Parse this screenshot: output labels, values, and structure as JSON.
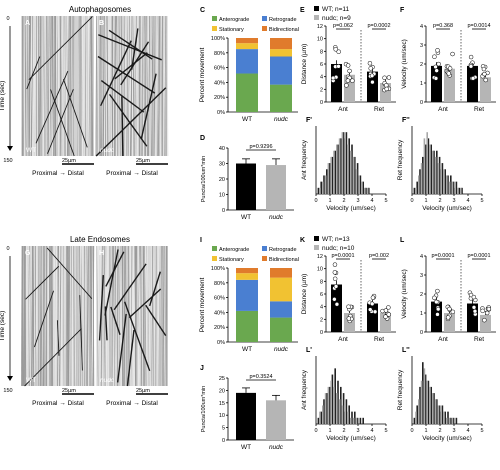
{
  "sections": [
    {
      "title": "Autophagosomes",
      "kymo": {
        "wt_letter": "A",
        "mut_letter": "B",
        "wt_label": "WT",
        "mut_label": "nudc",
        "y_axis_label": "Time (sec)",
        "y_start": "0",
        "y_end": "150",
        "scale_left": "25µm",
        "scale_right": "25µm",
        "axis_left": "Proximal → Distal",
        "axis_right": "Proximal → Distal"
      },
      "charts": {
        "movement": {
          "letter": "C",
          "type": "bar-stacked",
          "ylabel": "Percent movement",
          "yticks": [
            "0%",
            "20%",
            "40%",
            "60%",
            "80%",
            "100%"
          ],
          "categories": [
            "WT",
            "nudc"
          ],
          "legend": [
            "Anterograde",
            "Retrograde",
            "Stationary",
            "Bidirectional"
          ],
          "colors": [
            "#6aa84f",
            "#4a7fd1",
            "#f1c232",
            "#e07b2c"
          ],
          "series": [
            {
              "name": "Anterograde",
              "values": [
                52,
                37
              ]
            },
            {
              "name": "Retrograde",
              "values": [
                33,
                38
              ]
            },
            {
              "name": "Stationary",
              "values": [
                8,
                10
              ]
            },
            {
              "name": "Bidirectional",
              "values": [
                7,
                15
              ]
            }
          ]
        },
        "puncta": {
          "letter": "D",
          "type": "bar",
          "ylabel": "Puncta/100um*min",
          "categories": [
            "WT",
            "nudc"
          ],
          "values": [
            30,
            29
          ],
          "errors": [
            3,
            4
          ],
          "ylim": [
            0,
            40
          ],
          "yticks": [
            "0",
            "10",
            "20",
            "30",
            "40"
          ],
          "pvalue": "p=0.9296"
        },
        "distance": {
          "letter": "E",
          "type": "bar",
          "ylabel": "Distance (µm)",
          "legend": [
            "WT; n=11",
            "nudc; n=9"
          ],
          "groups": [
            "Ant",
            "Ret"
          ],
          "wt_values": [
            6.0,
            4.8
          ],
          "mut_values": [
            4.3,
            3.0
          ],
          "ylim": [
            0,
            12
          ],
          "yticks": [
            "0",
            "2",
            "4",
            "6",
            "8",
            "10",
            "12"
          ],
          "pvalues": [
            "p=0.062",
            "p=0.0002"
          ]
        },
        "velocity": {
          "letter": "F",
          "type": "bar",
          "ylabel": "Velocity (um/sec)",
          "groups": [
            "Ant",
            "Ret"
          ],
          "wt_values": [
            1.9,
            1.9
          ],
          "mut_values": [
            1.75,
            1.3
          ],
          "ylim": [
            0,
            4
          ],
          "yticks": [
            "0",
            "1",
            "2",
            "3",
            "4"
          ],
          "pvalues": [
            "p=0.368",
            "p=0.0014"
          ]
        },
        "ant_hist": {
          "letter": "F'",
          "type": "bar",
          "ylabel": "Ant frequency",
          "xlabel": "Velocity (um/sec)",
          "xticks": [
            "0",
            "1",
            "2",
            "3",
            "4",
            "5"
          ]
        },
        "ret_hist": {
          "letter": "F''",
          "type": "bar",
          "ylabel": "Ret frequency",
          "xlabel": "Velocity (um/sec)",
          "xticks": [
            "0",
            "1",
            "2",
            "3",
            "4",
            "5"
          ]
        }
      }
    },
    {
      "title": "Late Endosomes",
      "kymo": {
        "wt_letter": "G",
        "mut_letter": "H",
        "wt_label": "WT",
        "mut_label": "nudc",
        "y_axis_label": "Time (sec)",
        "y_start": "0",
        "y_end": "150",
        "scale_left": "25µm",
        "scale_right": "25µm",
        "axis_left": "Proximal → Distal",
        "axis_right": "Proximal → Distal"
      },
      "charts": {
        "movement": {
          "letter": "I",
          "type": "bar-stacked",
          "ylabel": "Percent movement",
          "yticks": [
            "0%",
            "20%",
            "40%",
            "60%",
            "80%",
            "100%"
          ],
          "categories": [
            "WT",
            "nudc"
          ],
          "legend": [
            "Anterograde",
            "Retrograde",
            "Stationary",
            "Bidirectional"
          ],
          "colors": [
            "#6aa84f",
            "#4a7fd1",
            "#f1c232",
            "#e07b2c"
          ],
          "series": [
            {
              "name": "Anterograde",
              "values": [
                42,
                33
              ]
            },
            {
              "name": "Retrograde",
              "values": [
                42,
                22
              ]
            },
            {
              "name": "Stationary",
              "values": [
                9,
                32
              ]
            },
            {
              "name": "Bidirectional",
              "values": [
                7,
                13
              ]
            }
          ]
        },
        "puncta": {
          "letter": "J",
          "type": "bar",
          "ylabel": "Puncta/100um*min",
          "categories": [
            "WT",
            "nudc"
          ],
          "values": [
            19,
            16
          ],
          "errors": [
            2,
            2
          ],
          "ylim": [
            0,
            25
          ],
          "yticks": [
            "0",
            "5",
            "10",
            "15",
            "20",
            "25"
          ],
          "pvalue": "p=0.3524"
        },
        "distance": {
          "letter": "K",
          "type": "bar",
          "ylabel": "Distance (µm)",
          "legend": [
            "WT; n=13",
            "nudc; n=10"
          ],
          "groups": [
            "Ant",
            "Ret"
          ],
          "wt_values": [
            7.5,
            4.5
          ],
          "mut_values": [
            3.0,
            3.0
          ],
          "ylim": [
            0,
            12
          ],
          "yticks": [
            "0",
            "2",
            "4",
            "6",
            "8",
            "10",
            "12"
          ],
          "pvalues": [
            "p=0.0001",
            "p=0.002"
          ]
        },
        "velocity": {
          "letter": "L",
          "type": "bar",
          "ylabel": "Velocity (um/sec)",
          "groups": [
            "Ant",
            "Ret"
          ],
          "wt_values": [
            1.6,
            1.5
          ],
          "mut_values": [
            1.0,
            0.9
          ],
          "ylim": [
            0,
            4
          ],
          "yticks": [
            "0",
            "1",
            "2",
            "3",
            "4"
          ],
          "pvalues": [
            "p=0.0001",
            "p=0.0001"
          ]
        },
        "ant_hist": {
          "letter": "L'",
          "type": "bar",
          "ylabel": "Ant frequency",
          "xlabel": "Velocity (um/sec)",
          "xticks": [
            "0",
            "1",
            "2",
            "3",
            "4",
            "5"
          ]
        },
        "ret_hist": {
          "letter": "L''",
          "type": "bar",
          "ylabel": "Ret frequency",
          "xlabel": "Velocity (um/sec)",
          "xticks": [
            "0",
            "1",
            "2",
            "3",
            "4",
            "5"
          ]
        }
      }
    }
  ],
  "chart_data": [
    {
      "panel": "C",
      "type": "bar",
      "title": "",
      "ylabel": "Percent movement",
      "categories": [
        "WT",
        "nudc"
      ],
      "series": [
        {
          "name": "Anterograde",
          "values": [
            52,
            37
          ]
        },
        {
          "name": "Retrograde",
          "values": [
            33,
            38
          ]
        },
        {
          "name": "Stationary",
          "values": [
            8,
            10
          ]
        },
        {
          "name": "Bidirectional",
          "values": [
            7,
            15
          ]
        }
      ],
      "ylim": [
        0,
        100
      ]
    },
    {
      "panel": "D",
      "type": "bar",
      "title": "",
      "ylabel": "Puncta/100um*min",
      "categories": [
        "WT",
        "nudc"
      ],
      "values": [
        30,
        29
      ],
      "ylim": [
        0,
        40
      ]
    },
    {
      "panel": "E",
      "type": "bar",
      "title": "",
      "ylabel": "Distance (µm)",
      "categories": [
        "Ant",
        "Ret"
      ],
      "series": [
        {
          "name": "WT; n=11",
          "values": [
            6.0,
            4.8
          ]
        },
        {
          "name": "nudc; n=9",
          "values": [
            4.3,
            3.0
          ]
        }
      ],
      "ylim": [
        0,
        12
      ]
    },
    {
      "panel": "F",
      "type": "bar",
      "title": "",
      "ylabel": "Velocity (um/sec)",
      "categories": [
        "Ant",
        "Ret"
      ],
      "series": [
        {
          "name": "WT; n=11",
          "values": [
            1.9,
            1.9
          ]
        },
        {
          "name": "nudc; n=9",
          "values": [
            1.75,
            1.3
          ]
        }
      ],
      "ylim": [
        0,
        4
      ]
    },
    {
      "panel": "F'",
      "type": "bar",
      "title": "",
      "xlabel": "Velocity (um/sec)",
      "ylabel": "Ant frequency",
      "x": [
        0.2,
        0.4,
        0.6,
        0.8,
        1.0,
        1.2,
        1.4,
        1.6,
        1.8,
        2.0,
        2.2,
        2.4,
        2.6,
        2.8,
        3.0,
        3.2,
        3.4,
        3.6,
        3.8
      ],
      "series": [
        {
          "name": "WT",
          "values": [
            1,
            2,
            3,
            4,
            5,
            6,
            7,
            8,
            9,
            10,
            10,
            9,
            8,
            6,
            5,
            3,
            2,
            1,
            1
          ]
        },
        {
          "name": "nudc",
          "values": [
            1,
            2,
            3,
            5,
            6,
            7,
            8,
            9,
            10,
            9,
            8,
            7,
            6,
            4,
            3,
            2,
            1,
            1,
            0
          ]
        }
      ],
      "xlim": [
        0,
        5
      ]
    },
    {
      "panel": "F''",
      "type": "bar",
      "title": "",
      "xlabel": "Velocity (um/sec)",
      "ylabel": "Ret frequency",
      "x": [
        0.2,
        0.4,
        0.6,
        0.8,
        1.0,
        1.2,
        1.4,
        1.6,
        1.8,
        2.0,
        2.2,
        2.4,
        2.6,
        2.8,
        3.0,
        3.2,
        3.4,
        3.6,
        3.8
      ],
      "series": [
        {
          "name": "WT",
          "values": [
            1,
            2,
            4,
            6,
            8,
            9,
            8,
            7,
            7,
            6,
            5,
            4,
            3,
            3,
            2,
            2,
            1,
            1,
            0
          ]
        },
        {
          "name": "nudc",
          "values": [
            1,
            3,
            5,
            9,
            10,
            8,
            7,
            6,
            5,
            4,
            4,
            3,
            2,
            2,
            1,
            1,
            1,
            0,
            0
          ]
        }
      ],
      "xlim": [
        0,
        5
      ]
    },
    {
      "panel": "I",
      "type": "bar",
      "title": "",
      "ylabel": "Percent movement",
      "categories": [
        "WT",
        "nudc"
      ],
      "series": [
        {
          "name": "Anterograde",
          "values": [
            42,
            33
          ]
        },
        {
          "name": "Retrograde",
          "values": [
            42,
            22
          ]
        },
        {
          "name": "Stationary",
          "values": [
            9,
            32
          ]
        },
        {
          "name": "Bidirectional",
          "values": [
            7,
            13
          ]
        }
      ],
      "ylim": [
        0,
        100
      ]
    },
    {
      "panel": "J",
      "type": "bar",
      "title": "",
      "ylabel": "Puncta/100um*min",
      "categories": [
        "WT",
        "nudc"
      ],
      "values": [
        19,
        16
      ],
      "ylim": [
        0,
        25
      ]
    },
    {
      "panel": "K",
      "type": "bar",
      "title": "",
      "ylabel": "Distance (µm)",
      "categories": [
        "Ant",
        "Ret"
      ],
      "series": [
        {
          "name": "WT; n=13",
          "values": [
            7.5,
            4.5
          ]
        },
        {
          "name": "nudc; n=10",
          "values": [
            3.0,
            3.0
          ]
        }
      ],
      "ylim": [
        0,
        12
      ]
    },
    {
      "panel": "L",
      "type": "bar",
      "title": "",
      "ylabel": "Velocity (um/sec)",
      "categories": [
        "Ant",
        "Ret"
      ],
      "series": [
        {
          "name": "WT; n=13",
          "values": [
            1.6,
            1.5
          ]
        },
        {
          "name": "nudc; n=10",
          "values": [
            1.0,
            0.9
          ]
        }
      ],
      "ylim": [
        0,
        4
      ]
    },
    {
      "panel": "L'",
      "type": "bar",
      "title": "",
      "xlabel": "Velocity (um/sec)",
      "ylabel": "Ant frequency",
      "x": [
        0.2,
        0.4,
        0.6,
        0.8,
        1.0,
        1.2,
        1.4,
        1.6,
        1.8,
        2.0,
        2.2,
        2.4,
        2.6,
        2.8,
        3.0,
        3.2,
        3.4,
        3.6,
        3.8
      ],
      "series": [
        {
          "name": "WT",
          "values": [
            1,
            2,
            4,
            5,
            6,
            8,
            9,
            7,
            6,
            5,
            4,
            3,
            2,
            2,
            1,
            1,
            1,
            0,
            0
          ]
        },
        {
          "name": "nudc",
          "values": [
            2,
            3,
            5,
            6,
            7,
            6,
            5,
            4,
            3,
            2,
            2,
            1,
            1,
            1,
            0,
            0,
            0,
            0,
            0
          ]
        }
      ],
      "xlim": [
        0,
        5
      ]
    },
    {
      "panel": "L''",
      "type": "bar",
      "title": "",
      "xlabel": "Velocity (um/sec)",
      "ylabel": "Ret frequency",
      "x": [
        0.2,
        0.4,
        0.6,
        0.8,
        1.0,
        1.2,
        1.4,
        1.6,
        1.8,
        2.0,
        2.2,
        2.4,
        2.6,
        2.8,
        3.0,
        3.2,
        3.4,
        3.6,
        3.8
      ],
      "series": [
        {
          "name": "WT",
          "values": [
            1,
            3,
            6,
            10,
            8,
            7,
            6,
            5,
            4,
            3,
            3,
            2,
            2,
            1,
            1,
            1,
            0,
            0,
            0
          ]
        },
        {
          "name": "nudc",
          "values": [
            2,
            4,
            7,
            9,
            7,
            6,
            5,
            4,
            3,
            2,
            2,
            1,
            1,
            1,
            0,
            0,
            0,
            0,
            0
          ]
        }
      ],
      "xlim": [
        0,
        5
      ]
    }
  ]
}
